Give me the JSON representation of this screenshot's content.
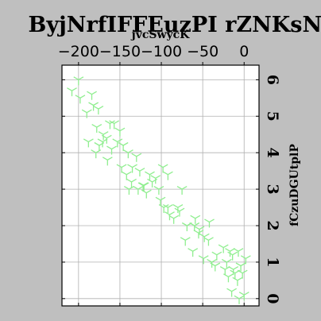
{
  "chart_data": {
    "type": "scatter",
    "title": "ByjNrfIFFEuzPI rZNKsNz",
    "xlabel": "jvcSwycK",
    "ylabel": "fCzuDGUtplP",
    "x_ticks": [
      "−200",
      "−150",
      "−100",
      "−50",
      "0"
    ],
    "y_ticks": [
      "0",
      "1",
      "2",
      "3",
      "4",
      "5",
      "6"
    ],
    "xlim": [
      -220,
      18
    ],
    "ylim": [
      -0.2,
      6.4
    ],
    "grid": true,
    "marker": "tri_down",
    "marker_color": "#90ee90",
    "series": [
      {
        "x": [
          -208,
          -200,
          -198,
          -184,
          -182,
          -176,
          -190,
          -178,
          -170,
          -188,
          -179,
          -162,
          -157,
          -150,
          -171,
          -160,
          -175,
          -166,
          -153,
          -146,
          -140,
          -130,
          -165,
          -148,
          -135,
          -142,
          -126,
          -136,
          -121,
          -114,
          -139,
          -128,
          -118,
          -107,
          -98,
          -92,
          -122,
          -111,
          -103,
          -97,
          -90,
          -75,
          -101,
          -92,
          -78,
          -85,
          -69,
          -71,
          -59,
          -80,
          -60,
          -54,
          -48,
          -42,
          -62,
          -49,
          -39,
          -55,
          -43,
          -33,
          -25,
          -17,
          -35,
          -23,
          -14,
          -7,
          -21,
          -11,
          -4,
          2,
          -19,
          -8,
          -13,
          -2,
          0,
          -15,
          -6
        ],
        "y": [
          5.7,
          6.0,
          5.5,
          5.6,
          5.3,
          5.2,
          5.1,
          4.7,
          4.5,
          4.3,
          4.0,
          4.8,
          4.8,
          4.6,
          4.3,
          4.1,
          4.2,
          4.4,
          4.3,
          4.2,
          4.0,
          3.9,
          3.8,
          3.6,
          3.6,
          3.4,
          3.5,
          3.2,
          3.1,
          3.4,
          3.0,
          3.0,
          2.9,
          3.3,
          3.6,
          3.4,
          3.1,
          3.2,
          3.0,
          2.5,
          2.3,
          3.0,
          2.7,
          2.5,
          2.4,
          2.2,
          2.0,
          1.6,
          2.2,
          2.5,
          2.0,
          1.9,
          1.7,
          2.1,
          1.3,
          1.1,
          1.0,
          1.8,
          1.6,
          1.2,
          1.4,
          1.3,
          0.9,
          0.8,
          1.2,
          1.3,
          1.0,
          0.7,
          0.9,
          1.1,
          0.6,
          0.5,
          0.8,
          0.7,
          0.1,
          0.2,
          0.0
        ]
      }
    ]
  }
}
